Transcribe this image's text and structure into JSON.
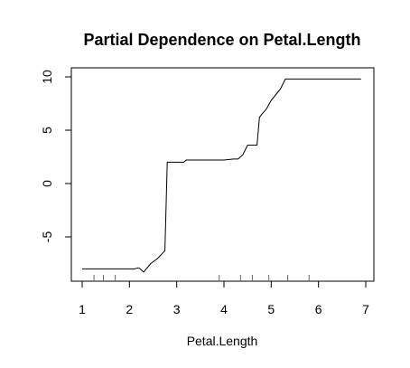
{
  "chart_data": {
    "type": "line",
    "title": "Partial Dependence on Petal.Length",
    "xlabel": "Petal.Length",
    "ylabel": "",
    "xlim": [
      1,
      7
    ],
    "ylim": [
      -8.4,
      10.3
    ],
    "xticks": [
      1,
      2,
      3,
      4,
      5,
      6,
      7
    ],
    "yticks": [
      -5,
      0,
      5,
      10
    ],
    "xtick_labels": [
      "1",
      "2",
      "3",
      "4",
      "5",
      "6",
      "7"
    ],
    "ytick_labels": [
      "-5",
      "0",
      "5",
      "10"
    ],
    "grid": false,
    "legend": "none",
    "line_color": "#000000",
    "series": [
      {
        "x": [
          1.0,
          1.4,
          2.1,
          2.2,
          2.3,
          2.45,
          2.6,
          2.75,
          2.8,
          3.0,
          3.15,
          3.2,
          3.4,
          3.6,
          3.8,
          4.0,
          4.2,
          4.3,
          4.4,
          4.5,
          4.6,
          4.7,
          4.75,
          4.8,
          4.9,
          5.0,
          5.2,
          5.3,
          5.5,
          6.9
        ],
        "y": [
          -8.0,
          -8.0,
          -8.0,
          -7.9,
          -8.3,
          -7.5,
          -7.0,
          -6.3,
          2.0,
          2.0,
          2.0,
          2.2,
          2.2,
          2.2,
          2.2,
          2.2,
          2.3,
          2.3,
          2.7,
          3.6,
          3.6,
          3.6,
          6.2,
          6.5,
          7.0,
          7.8,
          8.9,
          9.8,
          9.8,
          9.8
        ]
      }
    ],
    "rug": [
      1.25,
      1.45,
      1.7,
      3.9,
      4.35,
      4.6,
      4.95,
      5.35,
      5.8
    ]
  }
}
